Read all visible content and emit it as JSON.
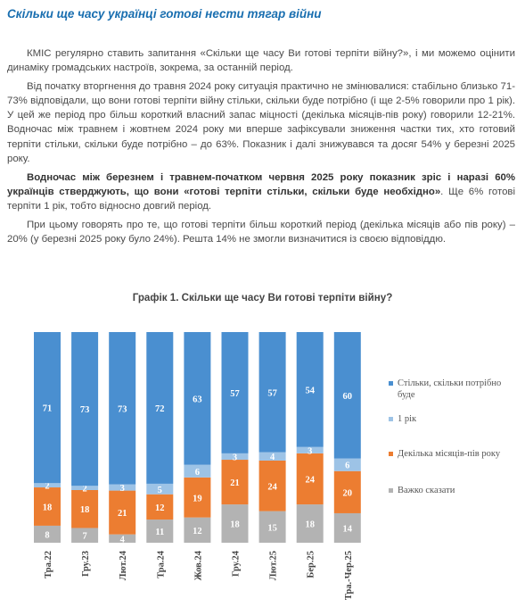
{
  "heading": "Скільки ще часу українці готові нести тягар війни",
  "paragraphs": {
    "p1": "КМІС регулярно ставить запитання «Скільки ще часу Ви готові терпіти війну?», і ми можемо оцінити динаміку громадських настроїв, зокрема, за останній період.",
    "p2": "Від початку вторгнення до травня 2024 року ситуація практично не змінювалися: стабільно близько 71-73% відповідали, що вони готові терпіти війну стільки, скільки буде потрібно (і ще 2-5% говорили про 1 рік). У цей же період про більш короткий власний запас міцності (декілька місяців-пів року) говорили 12-21%. Водночас між травнем і жовтнем 2024 року ми вперше зафіксували зниження частки тих, хто готовий терпіти стільки, скільки буде потрібно – до 63%. Показник і далі знижувався та досяг 54% у березні 2025 року.",
    "p3_bold": "Водночас між березнем і травнем-початком червня 2025 року показник зріс і наразі 60% українців стверджують, що вони «готові терпіти стільки, скільки буде необхідно»",
    "p3_rest": ". Ще 6% готові терпіти 1 рік, тобто відносно довгий період.",
    "p4": "При цьому говорять про те, що готові терпіти більш короткий період (декілька місяців або пів року) – 20% (у березні 2025 року було 24%). Решта 14% не змогли визначитися із своєю відповіддю."
  },
  "chart_data": {
    "type": "bar",
    "stacked": true,
    "percent_stacked": true,
    "title": "Графік 1. Скільки ще часу Ви готові терпіти війну?",
    "categories": [
      "Тра.22",
      "Гру.23",
      "Лют.24",
      "Тра.24",
      "Жов.24",
      "Гру.24",
      "Лют.25",
      "Бер.25",
      "Тра.-Чер.25"
    ],
    "series": [
      {
        "name": "Важко сказати",
        "color": "#b3b3b3",
        "values": [
          8,
          7,
          4,
          11,
          12,
          18,
          15,
          18,
          14
        ]
      },
      {
        "name": "Декілька місяців-пів року",
        "color": "#ec7d31",
        "values": [
          18,
          18,
          21,
          12,
          19,
          21,
          24,
          24,
          20
        ]
      },
      {
        "name": "1 рік",
        "color": "#9dc3e6",
        "values": [
          2,
          2,
          3,
          5,
          6,
          3,
          4,
          3,
          6
        ]
      },
      {
        "name": "Стільки, скільки потрібно буде",
        "color": "#4a8fd0",
        "values": [
          71,
          73,
          73,
          72,
          63,
          57,
          57,
          54,
          60
        ]
      }
    ],
    "label_colors": [
      "#ffffff",
      "#ffffff",
      "#ffffff",
      "#ffffff"
    ],
    "legend_position": "right",
    "grid": false
  },
  "legend_order": [
    3,
    2,
    1,
    0
  ]
}
